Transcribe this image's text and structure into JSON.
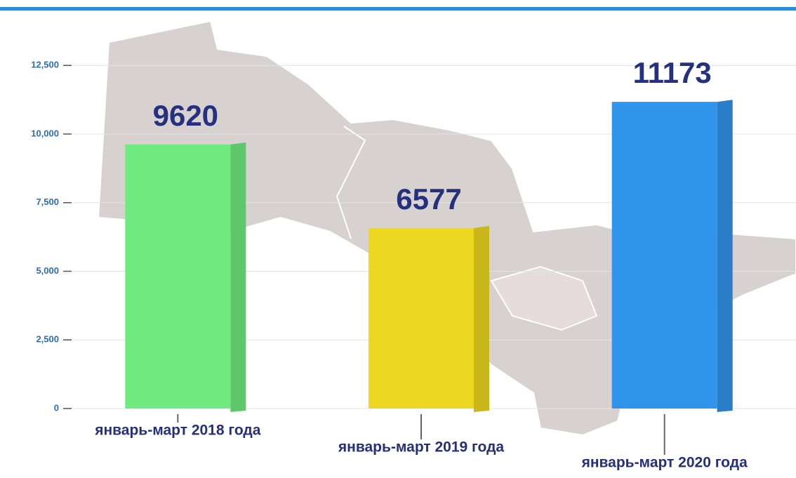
{
  "chart_data": {
    "type": "bar3d",
    "categories": [
      "январь-март 2018 года",
      "январь-март 2019 года",
      "январь-март 2020 года"
    ],
    "values": [
      9620,
      6577,
      11173
    ],
    "colors": [
      "#70ea7e",
      "#ecd820",
      "#3094ea"
    ],
    "ylim": [
      0,
      14500
    ],
    "yticks": [
      0,
      {
        "value": 2500,
        "label": "2,500"
      },
      {
        "value": 5000,
        "label": "5,000"
      },
      {
        "value": 7500,
        "label": "7,500"
      },
      {
        "value": 10000,
        "label": "10,000"
      },
      {
        "value": 12500,
        "label": "12,500"
      }
    ],
    "grid": true
  }
}
